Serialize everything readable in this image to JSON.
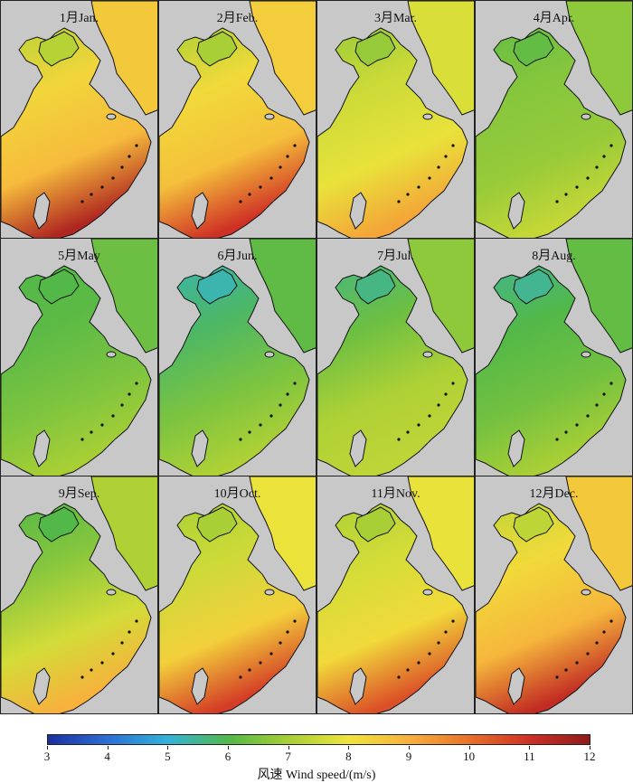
{
  "panels": [
    {
      "month_label": "1月Jan.",
      "field": {
        "bohai": 7.2,
        "yellow": 8.3,
        "east": 8.8,
        "strait": 11.5
      }
    },
    {
      "month_label": "2月Feb.",
      "field": {
        "bohai": 7.0,
        "yellow": 8.2,
        "east": 8.7,
        "strait": 11.0
      }
    },
    {
      "month_label": "3月Mar.",
      "field": {
        "bohai": 6.8,
        "yellow": 7.5,
        "east": 7.9,
        "strait": 9.2
      }
    },
    {
      "month_label": "4月Apr.",
      "field": {
        "bohai": 6.2,
        "yellow": 6.6,
        "east": 6.8,
        "strait": 7.4
      }
    },
    {
      "month_label": "5月May",
      "field": {
        "bohai": 6.0,
        "yellow": 6.1,
        "east": 6.5,
        "strait": 7.0
      }
    },
    {
      "month_label": "6月Jun.",
      "field": {
        "bohai": 5.3,
        "yellow": 5.8,
        "east": 6.5,
        "strait": 7.1
      }
    },
    {
      "month_label": "7月Jul.",
      "field": {
        "bohai": 5.6,
        "yellow": 6.3,
        "east": 7.1,
        "strait": 7.3
      }
    },
    {
      "month_label": "8月Aug.",
      "field": {
        "bohai": 5.5,
        "yellow": 6.0,
        "east": 6.4,
        "strait": 7.0
      }
    },
    {
      "month_label": "9月Sep.",
      "field": {
        "bohai": 6.0,
        "yellow": 6.6,
        "east": 7.6,
        "strait": 9.0
      }
    },
    {
      "month_label": "10月Oct.",
      "field": {
        "bohai": 7.0,
        "yellow": 7.5,
        "east": 8.4,
        "strait": 10.8
      }
    },
    {
      "month_label": "11月Nov.",
      "field": {
        "bohai": 7.0,
        "yellow": 7.6,
        "east": 8.2,
        "strait": 10.5
      }
    },
    {
      "month_label": "12月Dec.",
      "field": {
        "bohai": 7.3,
        "yellow": 8.2,
        "east": 8.9,
        "strait": 11.2
      }
    }
  ],
  "colorbar": {
    "ticks": [
      "3",
      "4",
      "5",
      "6",
      "7",
      "8",
      "9",
      "10",
      "11",
      "12"
    ],
    "range": [
      3,
      12
    ],
    "title": "风速 Wind speed/(m/s)",
    "colormap": [
      "#1b2f9e",
      "#2c6fd6",
      "#33b3d9",
      "#52b848",
      "#a8cf35",
      "#f0e43a",
      "#f7b13c",
      "#e8702a",
      "#cf3025",
      "#8e1b1b"
    ]
  },
  "land_color": "#c8c8c8"
}
